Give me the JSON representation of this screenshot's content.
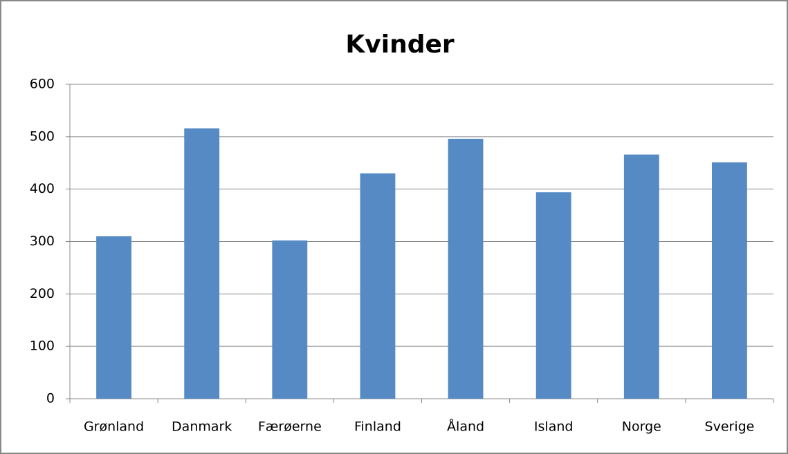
{
  "chart_data": {
    "type": "bar",
    "title": "Kvinder",
    "categories": [
      "Grønland",
      "Danmark",
      "Færøerne",
      "Finland",
      "Åland",
      "Island",
      "Norge",
      "Sverige"
    ],
    "values": [
      310,
      516,
      302,
      430,
      496,
      394,
      466,
      451
    ],
    "color": "#558ac5",
    "ylim": [
      0,
      600
    ],
    "yticks": [
      0,
      100,
      200,
      300,
      400,
      500,
      600
    ],
    "grid": true
  }
}
